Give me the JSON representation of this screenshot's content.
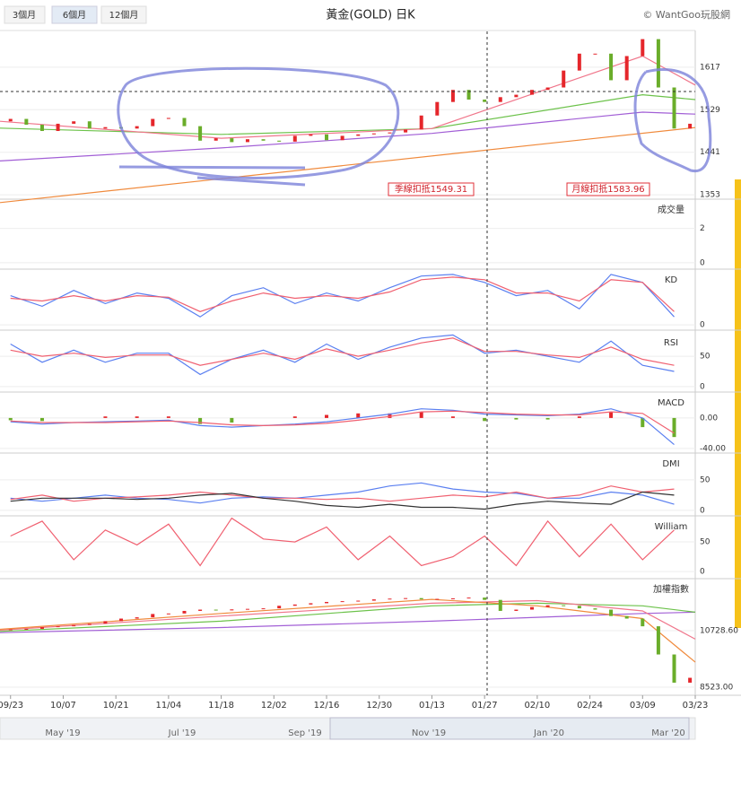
{
  "toolbar": {
    "buttons": [
      "3個月",
      "6個月",
      "12個月"
    ]
  },
  "watermark": "© WantGoo玩股網",
  "navigator": {
    "labels": [
      "May '19",
      "Jul '19",
      "Sep '19",
      "Nov '19",
      "Jan '20",
      "Mar '20"
    ]
  },
  "chart_data": [
    {
      "type": "candlestick",
      "title": "黃金(GOLD) 日K",
      "xlim": [
        -2,
        130
      ],
      "ylim": [
        1344,
        1691
      ],
      "yticks": [
        1353,
        1441,
        1529,
        1617
      ],
      "up_color": "#e5262b",
      "down_color": "#6aad2a",
      "x": [
        0,
        3,
        6,
        9,
        12,
        15,
        18,
        21,
        24,
        27,
        30,
        33,
        36,
        39,
        42,
        45,
        48,
        51,
        54,
        57,
        60,
        63,
        66,
        69,
        72,
        75,
        78,
        81,
        84,
        87,
        90,
        93,
        96,
        99,
        102,
        105,
        108,
        111,
        114,
        117,
        120,
        123,
        126,
        129
      ],
      "open": [
        1505,
        1510,
        1498,
        1485,
        1500,
        1505,
        1490,
        1493,
        1490,
        1495,
        1510,
        1512,
        1495,
        1465,
        1470,
        1462,
        1468,
        1465,
        1463,
        1475,
        1478,
        1466,
        1475,
        1478,
        1480,
        1482,
        1488,
        1517,
        1545,
        1570,
        1550,
        1545,
        1555,
        1560,
        1570,
        1575,
        1610,
        1645,
        1645,
        1590,
        1640,
        1675,
        1575,
        1490
      ],
      "close": [
        1510,
        1498,
        1485,
        1500,
        1505,
        1490,
        1493,
        1490,
        1495,
        1510,
        1512,
        1495,
        1465,
        1470,
        1462,
        1468,
        1465,
        1463,
        1475,
        1478,
        1466,
        1475,
        1478,
        1480,
        1482,
        1488,
        1517,
        1545,
        1570,
        1550,
        1545,
        1555,
        1560,
        1570,
        1575,
        1610,
        1645,
        1645,
        1590,
        1640,
        1675,
        1575,
        1490,
        1500
      ],
      "series": [
        {
          "color": "#f08a3c",
          "x": [
            -2,
            130
          ],
          "values": [
            1337,
            1492
          ]
        },
        {
          "color": "#a25fd6",
          "x": [
            -2,
            40,
            80,
            120,
            130
          ],
          "values": [
            1423,
            1450,
            1480,
            1524,
            1520
          ]
        },
        {
          "color": "#6cc24a",
          "x": [
            -2,
            40,
            80,
            120,
            130
          ],
          "values": [
            1491,
            1478,
            1490,
            1560,
            1550
          ]
        },
        {
          "color": "#f0768b",
          "x": [
            -2,
            40,
            80,
            120,
            130
          ],
          "values": [
            1505,
            1470,
            1490,
            1640,
            1580
          ]
        }
      ],
      "annotations": [
        "季線扣抵1549.31",
        "月線扣抵1583.96"
      ]
    },
    {
      "type": "bar",
      "label": "成交量",
      "xlim": [
        -2,
        130
      ],
      "ylim": [
        -0.37,
        3.7
      ],
      "yticks": [
        0,
        2
      ]
    },
    {
      "type": "line",
      "label": "KD",
      "xlim": [
        -2,
        130
      ],
      "ylim": [
        -10,
        105
      ],
      "yticks": [
        0
      ],
      "x": [
        0,
        6,
        12,
        18,
        24,
        30,
        36,
        42,
        48,
        54,
        60,
        66,
        72,
        78,
        84,
        90,
        96,
        102,
        108,
        114,
        120,
        126
      ],
      "series": [
        {
          "color": "#5a7ff0",
          "values": [
            55,
            35,
            65,
            40,
            60,
            50,
            15,
            55,
            70,
            40,
            60,
            45,
            70,
            92,
            95,
            80,
            55,
            65,
            30,
            95,
            80,
            15
          ]
        },
        {
          "color": "#f06070",
          "values": [
            50,
            45,
            55,
            45,
            55,
            52,
            25,
            45,
            60,
            50,
            55,
            50,
            62,
            85,
            90,
            85,
            60,
            60,
            45,
            85,
            80,
            25
          ]
        }
      ]
    },
    {
      "type": "line",
      "label": "RSI",
      "xlim": [
        -2,
        130
      ],
      "ylim": [
        -9,
        90
      ],
      "yticks": [
        0,
        50
      ],
      "x": [
        0,
        6,
        12,
        18,
        24,
        30,
        36,
        42,
        48,
        54,
        60,
        66,
        72,
        78,
        84,
        90,
        96,
        102,
        108,
        114,
        120,
        126
      ],
      "series": [
        {
          "color": "#5a7ff0",
          "values": [
            70,
            40,
            60,
            40,
            55,
            55,
            20,
            45,
            60,
            40,
            70,
            45,
            65,
            80,
            85,
            55,
            60,
            50,
            40,
            75,
            35,
            25
          ]
        },
        {
          "color": "#f06070",
          "values": [
            60,
            50,
            55,
            48,
            52,
            52,
            35,
            45,
            55,
            45,
            62,
            50,
            60,
            72,
            80,
            58,
            58,
            52,
            48,
            65,
            45,
            35
          ]
        }
      ]
    },
    {
      "type": "line",
      "label": "MACD",
      "xlim": [
        -2,
        130
      ],
      "ylim": [
        -46,
        34
      ],
      "yticks": [
        {
          "value": 0,
          "label": "0.00"
        },
        {
          "value": -40,
          "label": "-40.00"
        }
      ],
      "x": [
        0,
        6,
        12,
        18,
        24,
        30,
        36,
        42,
        48,
        54,
        60,
        66,
        72,
        78,
        84,
        90,
        96,
        102,
        108,
        114,
        120,
        126
      ],
      "series": [
        {
          "color": "#5a7ff0",
          "values": [
            -5,
            -8,
            -6,
            -5,
            -4,
            -3,
            -10,
            -12,
            -10,
            -8,
            -5,
            0,
            5,
            12,
            10,
            5,
            4,
            3,
            5,
            12,
            0,
            -35
          ]
        },
        {
          "color": "#f06070",
          "values": [
            -4,
            -6,
            -6,
            -6,
            -5,
            -4,
            -6,
            -9,
            -10,
            -9,
            -7,
            -3,
            2,
            8,
            9,
            7,
            5,
            4,
            4,
            8,
            6,
            -20
          ]
        }
      ],
      "histogram": {
        "up_color": "#e5262b",
        "down_color": "#6aad2a",
        "values": [
          -3,
          -4,
          0,
          2,
          2,
          2,
          -8,
          -6,
          0,
          2,
          4,
          6,
          6,
          8,
          2,
          -4,
          -2,
          -2,
          2,
          8,
          -12,
          -25
        ]
      }
    },
    {
      "type": "line",
      "label": "DMI",
      "xlim": [
        -2,
        130
      ],
      "ylim": [
        -9,
        94
      ],
      "yticks": [
        0,
        50
      ],
      "x": [
        0,
        6,
        12,
        18,
        24,
        30,
        36,
        42,
        48,
        54,
        60,
        66,
        72,
        78,
        84,
        90,
        96,
        102,
        108,
        114,
        120,
        126
      ],
      "series": [
        {
          "color": "#5a7ff0",
          "values": [
            20,
            15,
            20,
            25,
            20,
            18,
            12,
            20,
            22,
            20,
            25,
            30,
            40,
            45,
            35,
            30,
            28,
            20,
            20,
            30,
            25,
            10
          ]
        },
        {
          "color": "#f06070",
          "values": [
            18,
            25,
            15,
            20,
            22,
            25,
            30,
            25,
            20,
            20,
            18,
            20,
            15,
            20,
            25,
            22,
            30,
            20,
            25,
            40,
            30,
            35
          ]
        },
        {
          "color": "#333333",
          "values": [
            15,
            20,
            20,
            20,
            18,
            20,
            25,
            28,
            20,
            15,
            8,
            5,
            10,
            5,
            5,
            2,
            10,
            15,
            12,
            10,
            30,
            25
          ]
        }
      ]
    },
    {
      "type": "line",
      "label": "William",
      "xlim": [
        -2,
        130
      ],
      "ylim": [
        -12,
        94
      ],
      "yticks": [
        0,
        50
      ],
      "x": [
        0,
        6,
        12,
        18,
        24,
        30,
        36,
        42,
        48,
        54,
        60,
        66,
        72,
        78,
        84,
        90,
        96,
        102,
        108,
        114,
        120,
        126
      ],
      "series": [
        {
          "color": "#f06070",
          "values": [
            60,
            85,
            20,
            70,
            45,
            80,
            10,
            90,
            55,
            50,
            75,
            20,
            60,
            10,
            25,
            60,
            10,
            85,
            25,
            80,
            20,
            70
          ]
        }
      ]
    },
    {
      "type": "candlestick",
      "label": "加權指數",
      "xlim": [
        -2,
        130
      ],
      "ylim": [
        8208,
        12759
      ],
      "yticks": [
        {
          "value": 8523,
          "label": "8523.00"
        },
        {
          "value": 10728.6,
          "label": "10728.60"
        }
      ],
      "xticks": [
        {
          "value": 0,
          "label": "09/23"
        },
        {
          "value": 10,
          "label": "10/07"
        },
        {
          "value": 20,
          "label": "10/21"
        },
        {
          "value": 30,
          "label": "11/04"
        },
        {
          "value": 40,
          "label": "11/18"
        },
        {
          "value": 50,
          "label": "12/02"
        },
        {
          "value": 60,
          "label": "12/16"
        },
        {
          "value": 70,
          "label": "12/30"
        },
        {
          "value": 80,
          "label": "01/13"
        },
        {
          "value": 90,
          "label": "01/27"
        },
        {
          "value": 100,
          "label": "02/10"
        },
        {
          "value": 110,
          "label": "02/24"
        },
        {
          "value": 120,
          "label": "03/09"
        },
        {
          "value": 130,
          "label": "03/23"
        }
      ],
      "up_color": "#e5262b",
      "down_color": "#6aad2a",
      "x": [
        0,
        3,
        6,
        9,
        12,
        15,
        18,
        21,
        24,
        27,
        30,
        33,
        36,
        39,
        42,
        45,
        48,
        51,
        54,
        57,
        60,
        63,
        66,
        69,
        72,
        75,
        78,
        81,
        84,
        87,
        90,
        93,
        96,
        99,
        102,
        105,
        108,
        111,
        114,
        117,
        120,
        123,
        126,
        129
      ],
      "open": [
        10750,
        10780,
        10800,
        10870,
        10900,
        10950,
        11000,
        11100,
        11200,
        11250,
        11380,
        11400,
        11500,
        11550,
        11520,
        11560,
        11580,
        11600,
        11700,
        11750,
        11800,
        11850,
        11880,
        11900,
        11950,
        11980,
        12000,
        11950,
        11970,
        11990,
        12020,
        11930,
        11500,
        11550,
        11650,
        11720,
        11700,
        11600,
        11550,
        11300,
        11200,
        10900,
        9800,
        8700
      ],
      "close": [
        10780,
        10800,
        10870,
        10900,
        10950,
        11000,
        11100,
        11200,
        11250,
        11380,
        11400,
        11500,
        11550,
        11520,
        11560,
        11580,
        11600,
        11700,
        11750,
        11800,
        11850,
        11880,
        11900,
        11950,
        11980,
        12000,
        11950,
        11970,
        11990,
        12020,
        11930,
        11500,
        11550,
        11650,
        11720,
        11700,
        11600,
        11550,
        11300,
        11200,
        10900,
        9800,
        8700,
        8890
      ],
      "series": [
        {
          "color": "#a25fd6",
          "x": [
            -2,
            40,
            80,
            100,
            120,
            130
          ],
          "values": [
            10650,
            10850,
            11100,
            11250,
            11400,
            11450
          ]
        },
        {
          "color": "#6cc24a",
          "x": [
            -2,
            40,
            80,
            100,
            120,
            130
          ],
          "values": [
            10700,
            11100,
            11700,
            11800,
            11700,
            11450
          ]
        },
        {
          "color": "#f0768b",
          "x": [
            -2,
            40,
            80,
            100,
            120,
            130
          ],
          "values": [
            10750,
            11300,
            11800,
            11900,
            11500,
            10400
          ]
        },
        {
          "color": "#f08a3c",
          "x": [
            -2,
            40,
            80,
            100,
            120,
            130
          ],
          "values": [
            10780,
            11400,
            11950,
            11700,
            11200,
            9500
          ]
        }
      ]
    }
  ]
}
